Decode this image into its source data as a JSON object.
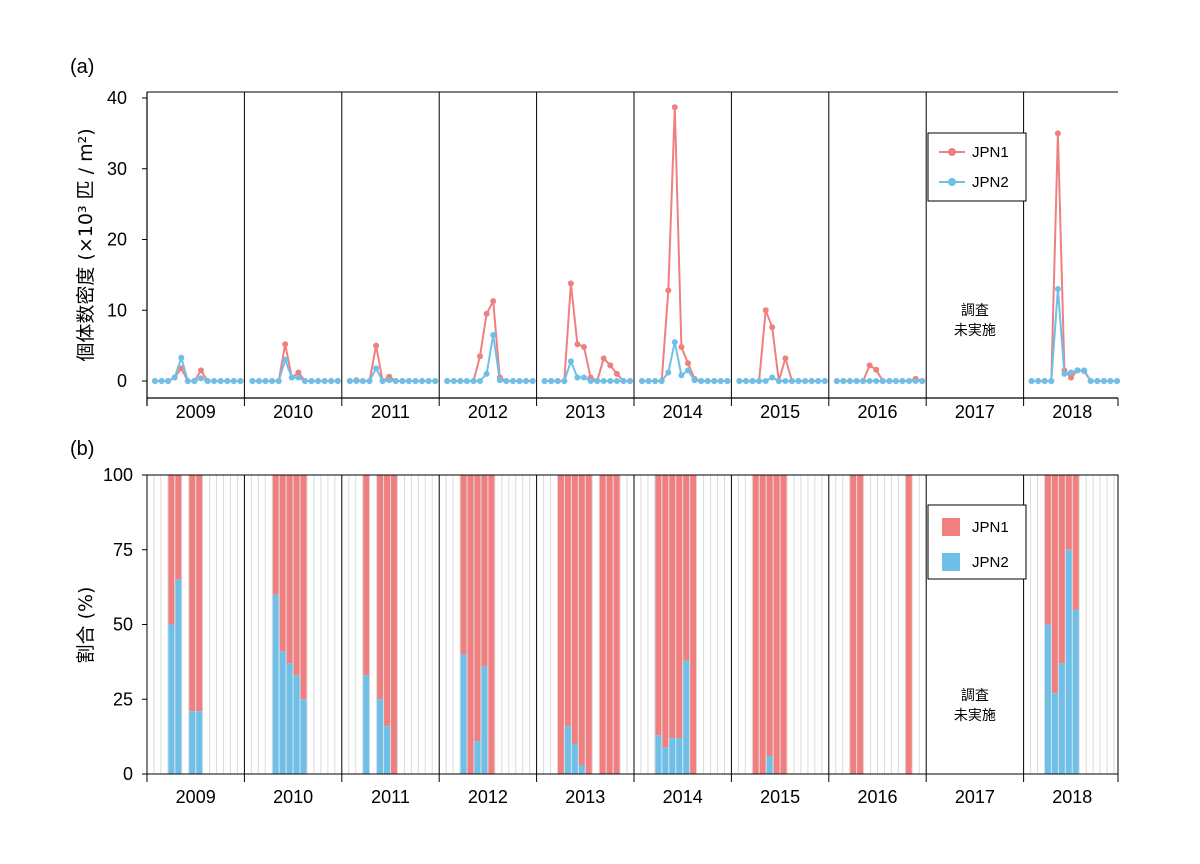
{
  "chart_data": [
    {
      "panel_label": "(a)",
      "type": "line",
      "ylabel": "個体数密度 (×10³ 匹 / m²)",
      "ylim": [
        0,
        40
      ],
      "yticks": [
        "0",
        "10",
        "20",
        "30",
        "40"
      ],
      "years": [
        "2009",
        "2010",
        "2011",
        "2012",
        "2013",
        "2014",
        "2015",
        "2016",
        "2017",
        "2018"
      ],
      "not_surveyed_year": "2017",
      "not_surveyed_note": [
        "調査",
        "未実施"
      ],
      "legend_position": "right",
      "series": [
        {
          "name": "JPN1",
          "color": "#f08080",
          "values": [
            [
              0,
              0,
              0,
              0.5,
              1.8,
              0,
              0,
              1.5,
              0,
              0,
              0,
              0,
              0,
              0
            ],
            [
              0,
              0,
              0,
              0,
              0,
              5.2,
              0.5,
              1.2,
              0,
              0,
              0,
              0,
              0,
              0
            ],
            [
              0,
              0.1,
              0,
              0,
              5.0,
              0,
              0.6,
              0,
              0,
              0,
              0,
              0,
              0,
              0
            ],
            [
              0,
              0,
              0,
              0,
              0,
              3.5,
              9.5,
              11.3,
              0.5,
              0,
              0,
              0,
              0,
              0
            ],
            [
              0,
              0,
              0,
              0,
              13.8,
              5.2,
              4.8,
              0.5,
              0,
              3.2,
              2.2,
              1.0,
              0,
              0
            ],
            [
              0,
              0,
              0,
              0,
              12.8,
              38.7,
              4.8,
              2.5,
              0.3,
              0,
              0,
              0,
              0,
              0
            ],
            [
              0,
              0,
              0,
              0,
              10.0,
              7.6,
              0,
              3.2,
              0,
              0,
              0,
              0,
              0,
              0
            ],
            [
              0,
              0,
              0,
              0,
              0,
              2.2,
              1.6,
              0,
              0,
              0,
              0,
              0,
              0.3,
              0
            ],
            [],
            [
              0,
              0,
              0,
              0,
              35.0,
              1.5,
              0.5,
              1.5,
              1.4,
              0,
              0,
              0,
              0,
              0
            ]
          ]
        },
        {
          "name": "JPN2",
          "color": "#6ec0e8",
          "values": [
            [
              0,
              0,
              0,
              0.5,
              3.3,
              0,
              0,
              0.4,
              0,
              0,
              0,
              0,
              0,
              0
            ],
            [
              0,
              0,
              0,
              0,
              0,
              3.0,
              0.5,
              0.5,
              0,
              0,
              0,
              0,
              0,
              0
            ],
            [
              0,
              0,
              0,
              0,
              1.8,
              0,
              0.1,
              0,
              0,
              0,
              0,
              0,
              0,
              0
            ],
            [
              0,
              0,
              0,
              0,
              0,
              0,
              1.0,
              6.5,
              0.1,
              0,
              0,
              0,
              0,
              0
            ],
            [
              0,
              0,
              0,
              0,
              2.8,
              0.5,
              0.5,
              0,
              0,
              0,
              0,
              0,
              0,
              0
            ],
            [
              0,
              0,
              0,
              0,
              1.2,
              5.5,
              0.8,
              1.5,
              0.1,
              0,
              0,
              0,
              0,
              0
            ],
            [
              0,
              0,
              0,
              0,
              0,
              0.5,
              0,
              0,
              0,
              0,
              0,
              0,
              0,
              0
            ],
            [
              0,
              0,
              0,
              0,
              0,
              0,
              0,
              0,
              0,
              0,
              0,
              0,
              0,
              0
            ],
            [],
            [
              0,
              0,
              0,
              0,
              13.0,
              1.0,
              1.2,
              1.5,
              1.5,
              0,
              0,
              0,
              0,
              0
            ]
          ]
        }
      ]
    },
    {
      "panel_label": "(b)",
      "type": "bar",
      "stacked": true,
      "ylabel": "割合 (%)",
      "ylim": [
        0,
        100
      ],
      "yticks": [
        "0",
        "25",
        "50",
        "75",
        "100"
      ],
      "years": [
        "2009",
        "2010",
        "2011",
        "2012",
        "2013",
        "2014",
        "2015",
        "2016",
        "2017",
        "2018"
      ],
      "not_surveyed_year": "2017",
      "not_surveyed_note": [
        "調査",
        "未実施"
      ],
      "legend_position": "right",
      "series_names": [
        "JPN1",
        "JPN2"
      ],
      "colors": {
        "JPN1": "#f08080",
        "JPN2": "#6ec0e8"
      },
      "jpn2_percent": [
        [
          null,
          null,
          null,
          50,
          65,
          null,
          21,
          21,
          null,
          null,
          null,
          null,
          null,
          null
        ],
        [
          null,
          null,
          null,
          null,
          60,
          41,
          37,
          33,
          25,
          null,
          null,
          null,
          null,
          null
        ],
        [
          null,
          null,
          null,
          33,
          null,
          25,
          16,
          0,
          null,
          null,
          null,
          null,
          null,
          null
        ],
        [
          null,
          null,
          null,
          40,
          0,
          11,
          36,
          0,
          null,
          null,
          null,
          null,
          null,
          null
        ],
        [
          null,
          null,
          null,
          0,
          16,
          10,
          3,
          0,
          null,
          0,
          0,
          0,
          null,
          null
        ],
        [
          null,
          null,
          null,
          13,
          9,
          12,
          12,
          38,
          0,
          null,
          null,
          null,
          null,
          null
        ],
        [
          null,
          null,
          null,
          0,
          0,
          6,
          0,
          0,
          null,
          null,
          null,
          null,
          null,
          null
        ],
        [
          null,
          null,
          null,
          0,
          0,
          null,
          null,
          null,
          null,
          null,
          null,
          0,
          null,
          null
        ],
        [],
        [
          null,
          null,
          null,
          50,
          27,
          37,
          75,
          55,
          null,
          null,
          null,
          null,
          null,
          null
        ]
      ]
    }
  ]
}
